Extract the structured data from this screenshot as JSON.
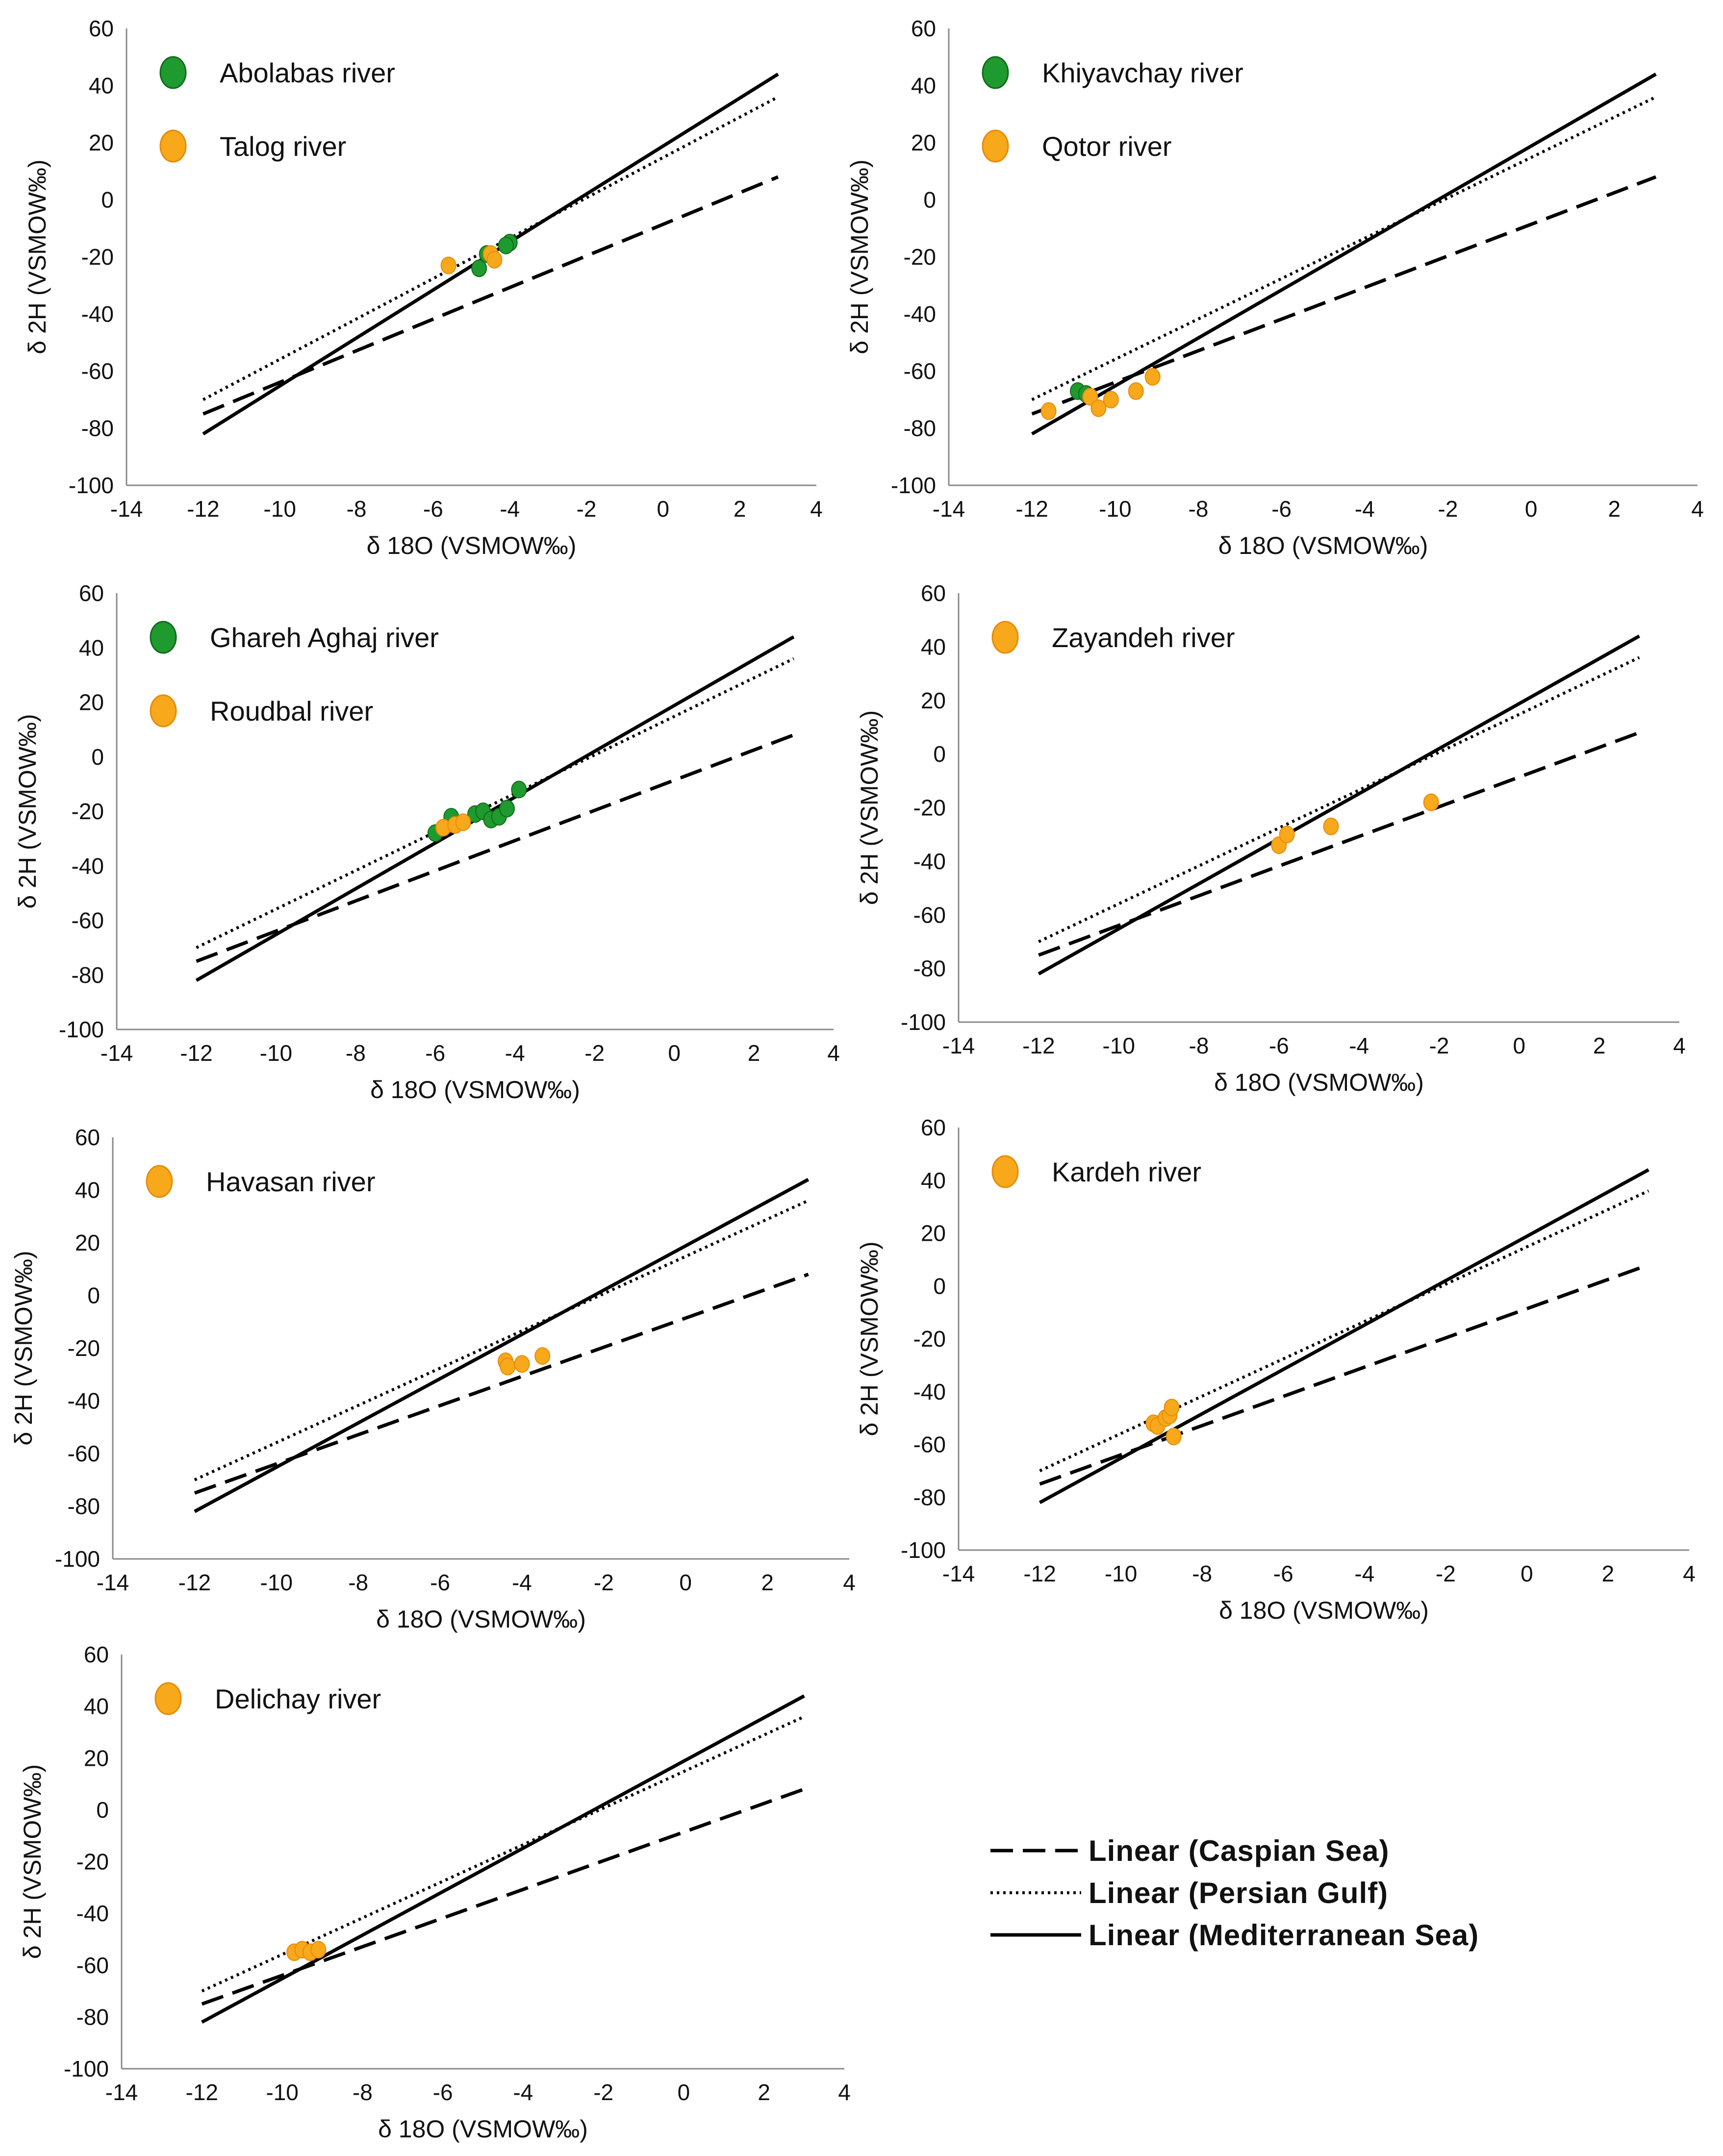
{
  "colors": {
    "green": "#1f9a2e",
    "green_dark": "#0f6b1c",
    "orange": "#f7a81b",
    "orange_dark": "#e88a08",
    "line": "#000000"
  },
  "line_key": [
    {
      "label": "Linear (Caspian Sea)",
      "style": "dashed"
    },
    {
      "label": "Linear (Persian Gulf)",
      "style": "dotted"
    },
    {
      "label": "Linear (Mediterranean Sea)",
      "style": "solid"
    }
  ],
  "chart_data": [
    {
      "type": "scatter",
      "xlabel": "δ 18O (VSMOW‰)",
      "ylabel": "δ 2H (VSMOW‰)",
      "xlim": [
        -14,
        4
      ],
      "ylim": [
        -100,
        60
      ],
      "xticks": [
        -14,
        -12,
        -10,
        -8,
        -6,
        -4,
        -2,
        0,
        2,
        4
      ],
      "yticks": [
        -100,
        -80,
        -60,
        -40,
        -20,
        0,
        20,
        40,
        60
      ],
      "legend": [
        {
          "label": "Abolabas river",
          "color": "green"
        },
        {
          "label": "Talog river",
          "color": "orange"
        }
      ],
      "series": [
        {
          "name": "Abolabas river",
          "color": "green",
          "points": [
            [
              -4.8,
              -24
            ],
            [
              -4.6,
              -19
            ],
            [
              -4.0,
              -15
            ],
            [
              -4.1,
              -16
            ]
          ]
        },
        {
          "name": "Talog river",
          "color": "orange",
          "points": [
            [
              -5.6,
              -23
            ],
            [
              -4.5,
              -19
            ],
            [
              -4.4,
              -21
            ]
          ]
        }
      ],
      "lines": [
        {
          "name": "Linear (Caspian Sea)",
          "style": "dashed",
          "from": [
            -12,
            -75
          ],
          "to": [
            3,
            8
          ]
        },
        {
          "name": "Linear (Persian Gulf)",
          "style": "dotted",
          "from": [
            -12,
            -70
          ],
          "to": [
            3,
            36
          ]
        },
        {
          "name": "Linear (Mediterranean Sea)",
          "style": "solid",
          "from": [
            -12,
            -82
          ],
          "to": [
            3,
            44
          ]
        }
      ]
    },
    {
      "type": "scatter",
      "xlabel": "δ 18O (VSMOW‰)",
      "ylabel": "δ 2H (VSMOW‰)",
      "xlim": [
        -14,
        4
      ],
      "ylim": [
        -100,
        60
      ],
      "xticks": [
        -14,
        -12,
        -10,
        -8,
        -6,
        -4,
        -2,
        0,
        2,
        4
      ],
      "yticks": [
        -100,
        -80,
        -60,
        -40,
        -20,
        0,
        20,
        40,
        60
      ],
      "legend": [
        {
          "label": "Khiyavchay river",
          "color": "green"
        },
        {
          "label": "Qotor river",
          "color": "orange"
        }
      ],
      "series": [
        {
          "name": "Khiyavchay river",
          "color": "green",
          "points": [
            [
              -10.9,
              -67
            ],
            [
              -10.7,
              -68
            ]
          ]
        },
        {
          "name": "Qotor river",
          "color": "orange",
          "points": [
            [
              -11.6,
              -74
            ],
            [
              -10.6,
              -69
            ],
            [
              -10.4,
              -73
            ],
            [
              -10.1,
              -70
            ],
            [
              -9.5,
              -67
            ],
            [
              -9.1,
              -62
            ]
          ]
        }
      ],
      "lines": [
        {
          "name": "Linear (Caspian Sea)",
          "style": "dashed",
          "from": [
            -12,
            -75
          ],
          "to": [
            3,
            8
          ]
        },
        {
          "name": "Linear (Persian Gulf)",
          "style": "dotted",
          "from": [
            -12,
            -70
          ],
          "to": [
            3,
            36
          ]
        },
        {
          "name": "Linear (Mediterranean Sea)",
          "style": "solid",
          "from": [
            -12,
            -82
          ],
          "to": [
            3,
            44
          ]
        }
      ]
    },
    {
      "type": "scatter",
      "xlabel": "δ 18O (VSMOW‰)",
      "ylabel": "δ 2H (VSMOW‰)",
      "xlim": [
        -14,
        4
      ],
      "ylim": [
        -100,
        60
      ],
      "xticks": [
        -14,
        -12,
        -10,
        -8,
        -6,
        -4,
        -2,
        0,
        2,
        4
      ],
      "yticks": [
        -100,
        -80,
        -60,
        -40,
        -20,
        0,
        20,
        40,
        60
      ],
      "legend": [
        {
          "label": "Ghareh Aghaj river",
          "color": "green"
        },
        {
          "label": "Roudbal river",
          "color": "orange"
        }
      ],
      "series": [
        {
          "name": "Ghareh Aghaj river",
          "color": "green",
          "points": [
            [
              -6.0,
              -28
            ],
            [
              -5.6,
              -22
            ],
            [
              -5.0,
              -21
            ],
            [
              -4.8,
              -20
            ],
            [
              -4.6,
              -23
            ],
            [
              -4.4,
              -22
            ],
            [
              -4.2,
              -19
            ],
            [
              -3.9,
              -12
            ]
          ]
        },
        {
          "name": "Roudbal river",
          "color": "orange",
          "points": [
            [
              -5.8,
              -26
            ],
            [
              -5.5,
              -25
            ],
            [
              -5.3,
              -24
            ]
          ]
        }
      ],
      "lines": [
        {
          "name": "Linear (Caspian Sea)",
          "style": "dashed",
          "from": [
            -12,
            -75
          ],
          "to": [
            3,
            8
          ]
        },
        {
          "name": "Linear (Persian Gulf)",
          "style": "dotted",
          "from": [
            -12,
            -70
          ],
          "to": [
            3,
            36
          ]
        },
        {
          "name": "Linear (Mediterranean Sea)",
          "style": "solid",
          "from": [
            -12,
            -82
          ],
          "to": [
            3,
            44
          ]
        }
      ]
    },
    {
      "type": "scatter",
      "xlabel": "δ 18O (VSMOW‰)",
      "ylabel": "δ 2H (VSMOW‰)",
      "xlim": [
        -14,
        4
      ],
      "ylim": [
        -100,
        60
      ],
      "xticks": [
        -14,
        -12,
        -10,
        -8,
        -6,
        -4,
        -2,
        0,
        2,
        4
      ],
      "yticks": [
        -100,
        -80,
        -60,
        -40,
        -20,
        0,
        20,
        40,
        60
      ],
      "legend": [
        {
          "label": "Zayandeh river",
          "color": "orange"
        }
      ],
      "series": [
        {
          "name": "Zayandeh river",
          "color": "orange",
          "points": [
            [
              -6.0,
              -34
            ],
            [
              -5.8,
              -30
            ],
            [
              -4.7,
              -27
            ],
            [
              -2.2,
              -18
            ]
          ]
        }
      ],
      "lines": [
        {
          "name": "Linear (Caspian Sea)",
          "style": "dashed",
          "from": [
            -12,
            -75
          ],
          "to": [
            3,
            8
          ]
        },
        {
          "name": "Linear (Persian Gulf)",
          "style": "dotted",
          "from": [
            -12,
            -70
          ],
          "to": [
            3,
            36
          ]
        },
        {
          "name": "Linear (Mediterranean Sea)",
          "style": "solid",
          "from": [
            -12,
            -82
          ],
          "to": [
            3,
            44
          ]
        }
      ]
    },
    {
      "type": "scatter",
      "xlabel": "δ 18O (VSMOW‰)",
      "ylabel": "δ 2H (VSMOW‰)",
      "xlim": [
        -14,
        4
      ],
      "ylim": [
        -100,
        60
      ],
      "xticks": [
        -14,
        -12,
        -10,
        -8,
        -6,
        -4,
        -2,
        0,
        2,
        4
      ],
      "yticks": [
        -100,
        -80,
        -60,
        -40,
        -20,
        0,
        20,
        40,
        60
      ],
      "legend": [
        {
          "label": "Havasan river",
          "color": "orange"
        }
      ],
      "series": [
        {
          "name": "Havasan river",
          "color": "orange",
          "points": [
            [
              -4.4,
              -25
            ],
            [
              -4.35,
              -27
            ],
            [
              -4.0,
              -26
            ],
            [
              -3.5,
              -23
            ]
          ]
        }
      ],
      "lines": [
        {
          "name": "Linear (Caspian Sea)",
          "style": "dashed",
          "from": [
            -12,
            -75
          ],
          "to": [
            3,
            8
          ]
        },
        {
          "name": "Linear (Persian Gulf)",
          "style": "dotted",
          "from": [
            -12,
            -70
          ],
          "to": [
            3,
            36
          ]
        },
        {
          "name": "Linear (Mediterranean Sea)",
          "style": "solid",
          "from": [
            -12,
            -82
          ],
          "to": [
            3,
            44
          ]
        }
      ]
    },
    {
      "type": "scatter",
      "xlabel": "δ 18O (VSMOW‰)",
      "ylabel": "δ 2H (VSMOW‰)",
      "xlim": [
        -14,
        4
      ],
      "ylim": [
        -100,
        60
      ],
      "xticks": [
        -14,
        -12,
        -10,
        -8,
        -6,
        -4,
        -2,
        0,
        2,
        4
      ],
      "yticks": [
        -100,
        -80,
        -60,
        -40,
        -20,
        0,
        20,
        40,
        60
      ],
      "legend": [
        {
          "label": "Kardeh river",
          "color": "orange"
        }
      ],
      "series": [
        {
          "name": "Kardeh river",
          "color": "orange",
          "points": [
            [
              -9.2,
              -52
            ],
            [
              -9.1,
              -53
            ],
            [
              -8.9,
              -50
            ],
            [
              -8.8,
              -49
            ],
            [
              -8.75,
              -46
            ],
            [
              -8.7,
              -57
            ]
          ]
        }
      ],
      "lines": [
        {
          "name": "Linear (Caspian Sea)",
          "style": "dashed",
          "from": [
            -12,
            -75
          ],
          "to": [
            3,
            8
          ]
        },
        {
          "name": "Linear (Persian Gulf)",
          "style": "dotted",
          "from": [
            -12,
            -70
          ],
          "to": [
            3,
            36
          ]
        },
        {
          "name": "Linear (Mediterranean Sea)",
          "style": "solid",
          "from": [
            -12,
            -82
          ],
          "to": [
            3,
            44
          ]
        }
      ]
    },
    {
      "type": "scatter",
      "xlabel": "δ 18O (VSMOW‰)",
      "ylabel": "δ 2H (VSMOW‰)",
      "xlim": [
        -14,
        4
      ],
      "ylim": [
        -100,
        60
      ],
      "xticks": [
        -14,
        -12,
        -10,
        -8,
        -6,
        -4,
        -2,
        0,
        2,
        4
      ],
      "yticks": [
        -100,
        -80,
        -60,
        -40,
        -20,
        0,
        20,
        40,
        60
      ],
      "legend": [
        {
          "label": "Delichay river",
          "color": "orange"
        }
      ],
      "series": [
        {
          "name": "Delichay river",
          "color": "orange",
          "points": [
            [
              -9.7,
              -55
            ],
            [
              -9.5,
              -54
            ],
            [
              -9.3,
              -55
            ],
            [
              -9.1,
              -54
            ]
          ]
        }
      ],
      "lines": [
        {
          "name": "Linear (Caspian Sea)",
          "style": "dashed",
          "from": [
            -12,
            -75
          ],
          "to": [
            3,
            8
          ]
        },
        {
          "name": "Linear (Persian Gulf)",
          "style": "dotted",
          "from": [
            -12,
            -70
          ],
          "to": [
            3,
            36
          ]
        },
        {
          "name": "Linear (Mediterranean Sea)",
          "style": "solid",
          "from": [
            -12,
            -82
          ],
          "to": [
            3,
            44
          ]
        }
      ]
    }
  ]
}
